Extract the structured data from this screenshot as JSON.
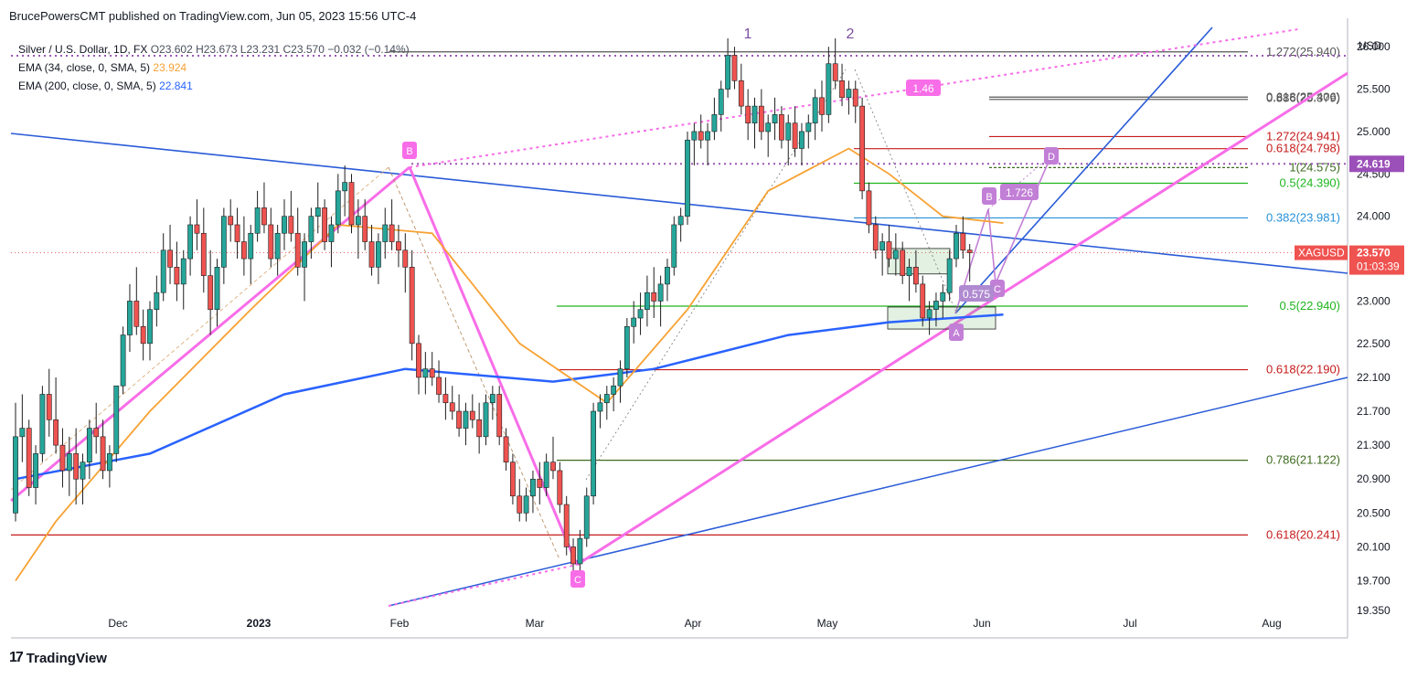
{
  "header": {
    "publisher": "BrucePowersCMT published on TradingView.com, Jun 05, 2023 15:56 UTC-4"
  },
  "legend": {
    "symbol": "Silver / U.S. Dollar, 1D, FX",
    "ohlc": "O23.602  H23.673  L23.231  C23.570  −0.032 (−0.14%)",
    "ema34_label": "EMA (34, close, 0, SMA, 5)",
    "ema34_value": "23.924",
    "ema200_label": "EMA (200, close, 0, SMA, 5)",
    "ema200_value": "22.841"
  },
  "footer": {
    "brand": "TradingView",
    "logo": "17"
  },
  "colors": {
    "up": "#26a69a",
    "down": "#ef5350",
    "ema34": "#f7a233",
    "ema200": "#2962ff",
    "pattern": "#f86de8",
    "pattern_light": "#c27fd6",
    "trend": "#2a5bd7",
    "fib_green": "#1fb51f",
    "fib_red": "#c61b1b",
    "fib_dark": "#3d6b1f",
    "fib_blue": "#2790d8",
    "gray": "#555555"
  },
  "chart_data": {
    "type": "candlestick",
    "currency": "USD",
    "symbol": "XAGUSD",
    "last_price": "23.570",
    "countdown": "01:03:39",
    "marker_price_label": "24.619",
    "ylim": [
      19.35,
      26.25
    ],
    "y_ticks": [
      "26.000",
      "25.500",
      "25.000",
      "24.500",
      "24.000",
      "23.500",
      "23.000",
      "22.500",
      "22.100",
      "21.700",
      "21.300",
      "20.900",
      "20.500",
      "20.100",
      "19.700",
      "19.350"
    ],
    "x_ticks": [
      "Dec",
      "2023",
      "Feb",
      "Mar",
      "Apr",
      "May",
      "Jun",
      "Jul",
      "Aug"
    ],
    "wave_labels": [
      "1",
      "2"
    ],
    "pattern_points": [
      "B",
      "C",
      "A",
      "B",
      "C",
      "D"
    ],
    "ratio_labels": [
      "1.46",
      "1.726",
      "0.575"
    ],
    "fib_levels": [
      {
        "label": "1.272(25.940)",
        "value": 25.94,
        "color": "gray"
      },
      {
        "label": "0.618(25.406)",
        "value": 25.406,
        "color": "gray"
      },
      {
        "label": "0.886(25.379)",
        "value": 25.379,
        "color": "gray"
      },
      {
        "label": "1.272(24.941)",
        "value": 24.941,
        "color": "red"
      },
      {
        "label": "0.618(24.798)",
        "value": 24.798,
        "color": "red"
      },
      {
        "label": "1(24.575)",
        "value": 24.575,
        "color": "dark"
      },
      {
        "label": "0.5(24.390)",
        "value": 24.39,
        "color": "green"
      },
      {
        "label": "0.382(23.981)",
        "value": 23.981,
        "color": "blue"
      },
      {
        "label": "0.5(22.940)",
        "value": 22.94,
        "color": "green"
      },
      {
        "label": "0.618(22.190)",
        "value": 22.19,
        "color": "red"
      },
      {
        "label": "0.786(21.122)",
        "value": 21.122,
        "color": "dark"
      },
      {
        "label": "0.618(20.241)",
        "value": 20.241,
        "color": "red"
      }
    ],
    "ohlc_series": [
      [
        20.5,
        21.8,
        20.4,
        21.4
      ],
      [
        21.4,
        21.9,
        21.1,
        21.5
      ],
      [
        21.5,
        21.6,
        20.7,
        20.8
      ],
      [
        20.8,
        21.3,
        20.6,
        21.2
      ],
      [
        21.2,
        22.0,
        21.1,
        21.9
      ],
      [
        21.9,
        22.2,
        21.4,
        21.6
      ],
      [
        21.6,
        22.1,
        21.2,
        21.3
      ],
      [
        21.3,
        21.5,
        20.8,
        21.0
      ],
      [
        21.0,
        21.4,
        20.7,
        21.2
      ],
      [
        21.2,
        21.5,
        20.6,
        20.9
      ],
      [
        20.9,
        21.2,
        20.6,
        21.1
      ],
      [
        21.1,
        21.6,
        20.9,
        21.5
      ],
      [
        21.5,
        21.8,
        21.2,
        21.4
      ],
      [
        21.4,
        21.6,
        20.9,
        21.0
      ],
      [
        21.0,
        21.3,
        20.8,
        21.2
      ],
      [
        21.2,
        22.0,
        21.1,
        22.0
      ],
      [
        22.0,
        22.7,
        21.9,
        22.6
      ],
      [
        22.6,
        23.2,
        22.4,
        23.0
      ],
      [
        23.0,
        23.4,
        22.6,
        22.7
      ],
      [
        22.7,
        22.9,
        22.3,
        22.5
      ],
      [
        22.5,
        23.0,
        22.3,
        22.9
      ],
      [
        22.9,
        23.3,
        22.7,
        23.1
      ],
      [
        23.1,
        23.8,
        23.0,
        23.6
      ],
      [
        23.6,
        23.9,
        23.2,
        23.4
      ],
      [
        23.4,
        23.7,
        23.0,
        23.2
      ],
      [
        23.2,
        23.6,
        22.9,
        23.5
      ],
      [
        23.5,
        24.0,
        23.3,
        23.9
      ],
      [
        23.9,
        24.2,
        23.6,
        23.8
      ],
      [
        23.8,
        24.1,
        23.1,
        23.3
      ],
      [
        23.3,
        23.6,
        22.6,
        22.9
      ],
      [
        22.9,
        23.5,
        22.7,
        23.4
      ],
      [
        23.4,
        24.1,
        23.2,
        24.0
      ],
      [
        24.0,
        24.2,
        23.7,
        23.9
      ],
      [
        23.9,
        24.1,
        23.5,
        23.7
      ],
      [
        23.7,
        24.0,
        23.3,
        23.5
      ],
      [
        23.5,
        23.9,
        23.2,
        23.8
      ],
      [
        23.8,
        24.3,
        23.7,
        24.1
      ],
      [
        24.1,
        24.4,
        23.8,
        23.9
      ],
      [
        23.9,
        24.1,
        23.4,
        23.5
      ],
      [
        23.5,
        23.9,
        23.3,
        23.8
      ],
      [
        23.8,
        24.2,
        23.6,
        24.0
      ],
      [
        24.0,
        24.3,
        23.7,
        23.8
      ],
      [
        23.8,
        24.1,
        23.3,
        23.4
      ],
      [
        23.4,
        23.8,
        23.0,
        23.7
      ],
      [
        23.7,
        24.1,
        23.5,
        24.0
      ],
      [
        24.0,
        24.4,
        23.8,
        24.1
      ],
      [
        24.1,
        24.2,
        23.6,
        23.7
      ],
      [
        23.7,
        24.0,
        23.4,
        23.9
      ],
      [
        23.9,
        24.5,
        23.8,
        24.3
      ],
      [
        24.3,
        24.6,
        24.0,
        24.4
      ],
      [
        24.4,
        24.5,
        23.8,
        23.9
      ],
      [
        23.9,
        24.2,
        23.5,
        24.0
      ],
      [
        24.0,
        24.2,
        23.6,
        23.7
      ],
      [
        23.7,
        23.9,
        23.3,
        23.4
      ],
      [
        23.4,
        23.8,
        23.2,
        23.7
      ],
      [
        23.7,
        24.1,
        23.5,
        23.9
      ],
      [
        23.9,
        24.2,
        23.6,
        23.7
      ],
      [
        23.7,
        23.9,
        23.4,
        23.6
      ],
      [
        23.6,
        23.8,
        23.1,
        23.4
      ],
      [
        23.4,
        23.6,
        22.3,
        22.5
      ],
      [
        22.5,
        22.6,
        21.9,
        22.1
      ],
      [
        22.1,
        22.4,
        21.9,
        22.2
      ],
      [
        22.2,
        22.4,
        22.0,
        22.1
      ],
      [
        22.1,
        22.3,
        21.8,
        21.9
      ],
      [
        21.9,
        22.1,
        21.6,
        21.8
      ],
      [
        21.8,
        22.0,
        21.6,
        21.7
      ],
      [
        21.7,
        21.9,
        21.4,
        21.5
      ],
      [
        21.5,
        21.8,
        21.3,
        21.7
      ],
      [
        21.7,
        21.9,
        21.5,
        21.6
      ],
      [
        21.6,
        21.8,
        21.2,
        21.4
      ],
      [
        21.4,
        21.9,
        21.3,
        21.8
      ],
      [
        21.8,
        22.0,
        21.6,
        21.9
      ],
      [
        21.9,
        22.0,
        21.3,
        21.4
      ],
      [
        21.4,
        21.5,
        21.0,
        21.1
      ],
      [
        21.1,
        21.2,
        20.6,
        20.7
      ],
      [
        20.7,
        20.9,
        20.4,
        20.5
      ],
      [
        20.5,
        20.8,
        20.4,
        20.7
      ],
      [
        20.7,
        21.0,
        20.5,
        20.9
      ],
      [
        20.9,
        21.1,
        20.6,
        20.8
      ],
      [
        20.8,
        21.2,
        20.7,
        21.1
      ],
      [
        21.1,
        21.4,
        20.9,
        21.0
      ],
      [
        21.0,
        21.1,
        20.5,
        20.6
      ],
      [
        20.6,
        20.7,
        20.0,
        20.1
      ],
      [
        20.1,
        20.2,
        19.75,
        19.9
      ],
      [
        19.9,
        20.3,
        19.8,
        20.2
      ],
      [
        20.2,
        20.8,
        20.1,
        20.7
      ],
      [
        20.7,
        21.8,
        20.6,
        21.7
      ],
      [
        21.7,
        21.9,
        21.5,
        21.8
      ],
      [
        21.8,
        22.0,
        21.6,
        21.9
      ],
      [
        21.9,
        22.1,
        21.7,
        22.0
      ],
      [
        22.0,
        22.3,
        21.8,
        22.2
      ],
      [
        22.2,
        22.8,
        22.1,
        22.7
      ],
      [
        22.7,
        23.0,
        22.5,
        22.8
      ],
      [
        22.8,
        23.1,
        22.6,
        22.9
      ],
      [
        22.9,
        23.3,
        22.7,
        23.1
      ],
      [
        23.1,
        23.4,
        22.8,
        23.0
      ],
      [
        23.0,
        23.3,
        22.7,
        23.2
      ],
      [
        23.2,
        23.5,
        23.0,
        23.4
      ],
      [
        23.4,
        24.0,
        23.3,
        23.9
      ],
      [
        23.9,
        24.1,
        23.7,
        24.0
      ],
      [
        24.0,
        25.0,
        23.9,
        24.9
      ],
      [
        24.9,
        25.1,
        24.6,
        25.0
      ],
      [
        25.0,
        25.2,
        24.8,
        24.9
      ],
      [
        24.9,
        25.1,
        24.6,
        25.0
      ],
      [
        25.0,
        25.4,
        24.9,
        25.2
      ],
      [
        25.2,
        25.6,
        25.0,
        25.5
      ],
      [
        25.5,
        26.1,
        25.4,
        25.9
      ],
      [
        25.9,
        26.0,
        25.5,
        25.6
      ],
      [
        25.6,
        25.8,
        25.2,
        25.3
      ],
      [
        25.3,
        25.5,
        24.9,
        25.1
      ],
      [
        25.1,
        25.4,
        24.8,
        25.3
      ],
      [
        25.3,
        25.5,
        24.9,
        25.0
      ],
      [
        25.0,
        25.2,
        24.7,
        25.1
      ],
      [
        25.1,
        25.4,
        24.9,
        25.2
      ],
      [
        25.2,
        25.3,
        24.8,
        24.9
      ],
      [
        24.9,
        25.2,
        24.6,
        25.1
      ],
      [
        25.1,
        25.3,
        24.7,
        24.8
      ],
      [
        24.8,
        25.1,
        24.6,
        25.0
      ],
      [
        25.0,
        25.2,
        24.8,
        25.1
      ],
      [
        25.1,
        25.5,
        24.9,
        25.4
      ],
      [
        25.4,
        25.6,
        25.0,
        25.2
      ],
      [
        25.2,
        26.0,
        25.1,
        25.8
      ],
      [
        25.8,
        26.1,
        25.5,
        25.6
      ],
      [
        25.6,
        25.8,
        25.3,
        25.4
      ],
      [
        25.4,
        25.6,
        25.2,
        25.5
      ],
      [
        25.5,
        25.6,
        25.1,
        25.3
      ],
      [
        25.3,
        25.4,
        24.2,
        24.3
      ],
      [
        24.3,
        24.4,
        23.8,
        23.9
      ],
      [
        23.9,
        24.0,
        23.5,
        23.6
      ],
      [
        23.6,
        23.8,
        23.3,
        23.7
      ],
      [
        23.7,
        23.9,
        23.4,
        23.5
      ],
      [
        23.5,
        23.8,
        23.3,
        23.6
      ],
      [
        23.6,
        23.7,
        23.2,
        23.3
      ],
      [
        23.3,
        23.5,
        23.0,
        23.4
      ],
      [
        23.4,
        23.6,
        23.1,
        23.2
      ],
      [
        23.2,
        23.3,
        22.7,
        22.8
      ],
      [
        22.8,
        23.0,
        22.6,
        22.9
      ],
      [
        22.9,
        23.1,
        22.7,
        23.0
      ],
      [
        23.0,
        23.2,
        22.8,
        23.1
      ],
      [
        23.1,
        23.6,
        23.0,
        23.5
      ],
      [
        23.5,
        23.9,
        23.4,
        23.8
      ],
      [
        23.8,
        24.0,
        23.5,
        23.6
      ],
      [
        23.602,
        23.673,
        23.231,
        23.57
      ]
    ],
    "ema34": [
      [
        0,
        19.7
      ],
      [
        6,
        20.4
      ],
      [
        20,
        21.7
      ],
      [
        35,
        22.9
      ],
      [
        48,
        23.9
      ],
      [
        62,
        23.8
      ],
      [
        75,
        22.5
      ],
      [
        88,
        21.8
      ],
      [
        100,
        22.9
      ],
      [
        112,
        24.3
      ],
      [
        124,
        24.8
      ],
      [
        130,
        24.5
      ],
      [
        138,
        24.0
      ],
      [
        147,
        23.92
      ]
    ],
    "ema200": [
      [
        0,
        20.9
      ],
      [
        20,
        21.2
      ],
      [
        40,
        21.9
      ],
      [
        58,
        22.2
      ],
      [
        80,
        22.05
      ],
      [
        95,
        22.2
      ],
      [
        115,
        22.6
      ],
      [
        130,
        22.75
      ],
      [
        147,
        22.84
      ]
    ]
  }
}
